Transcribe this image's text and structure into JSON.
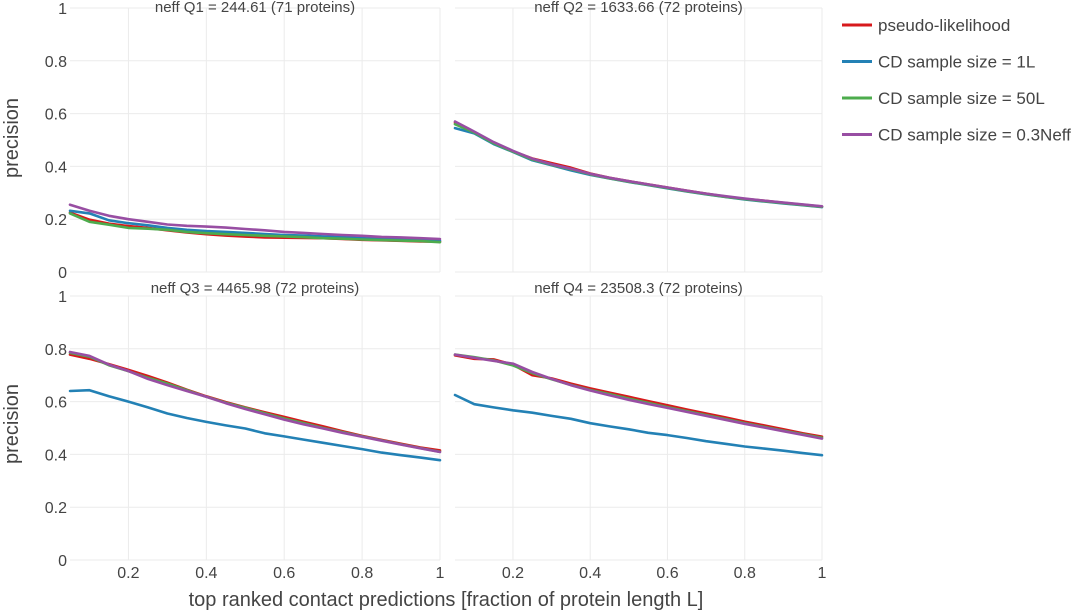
{
  "chart_data": {
    "type": "line",
    "xlabel": "top ranked contact predictions [fraction of protein length L]",
    "ylabel": "precision",
    "xlim": [
      0.05,
      1.0
    ],
    "ylim": [
      0,
      1
    ],
    "x_ticks": [
      "0.2",
      "0.4",
      "0.6",
      "0.8",
      "1"
    ],
    "x_tick_values": [
      0.2,
      0.4,
      0.6,
      0.8,
      1.0
    ],
    "y_ticks": [
      "0",
      "0.2",
      "0.4",
      "0.6",
      "0.8",
      "1"
    ],
    "y_tick_values": [
      0,
      0.2,
      0.4,
      0.6,
      0.8,
      1.0
    ],
    "grid": true,
    "legend_position": "top-right",
    "legend": [
      {
        "name": "pseudo-likelihood",
        "color": "#d7191c"
      },
      {
        "name": "CD sample size = 1L",
        "color": "#2381b5"
      },
      {
        "name": "CD sample size = 50L",
        "color": "#4dac4d"
      },
      {
        "name": "CD sample size = 0.3Neff",
        "color": "#984ea3"
      }
    ],
    "x": [
      0.05,
      0.1,
      0.15,
      0.2,
      0.25,
      0.3,
      0.35,
      0.4,
      0.45,
      0.5,
      0.55,
      0.6,
      0.65,
      0.7,
      0.75,
      0.8,
      0.85,
      0.9,
      0.95,
      1.0
    ],
    "panels": [
      {
        "title": "neff  Q1 = 244.61 (71 proteins)",
        "series": [
          {
            "name": "pseudo-likelihood",
            "color": "#d7191c",
            "values": [
              0.225,
              0.198,
              0.183,
              0.174,
              0.167,
              0.158,
              0.15,
              0.143,
              0.138,
              0.134,
              0.131,
              0.13,
              0.129,
              0.128,
              0.125,
              0.122,
              0.12,
              0.118,
              0.116,
              0.115
            ]
          },
          {
            "name": "CD sample size = 1L",
            "color": "#2381b5",
            "values": [
              0.232,
              0.222,
              0.196,
              0.185,
              0.177,
              0.167,
              0.16,
              0.155,
              0.152,
              0.148,
              0.144,
              0.14,
              0.138,
              0.135,
              0.132,
              0.128,
              0.125,
              0.123,
              0.121,
              0.119
            ]
          },
          {
            "name": "CD sample size = 50L",
            "color": "#4dac4d",
            "values": [
              0.222,
              0.19,
              0.179,
              0.167,
              0.164,
              0.16,
              0.152,
              0.147,
              0.143,
              0.14,
              0.137,
              0.135,
              0.132,
              0.128,
              0.126,
              0.123,
              0.121,
              0.119,
              0.117,
              0.113
            ]
          },
          {
            "name": "CD sample size = 0.3Neff",
            "color": "#984ea3",
            "values": [
              0.255,
              0.232,
              0.213,
              0.2,
              0.19,
              0.18,
              0.175,
              0.172,
              0.168,
              0.163,
              0.158,
              0.152,
              0.148,
              0.144,
              0.14,
              0.137,
              0.133,
              0.131,
              0.128,
              0.125
            ]
          }
        ]
      },
      {
        "title": "neff  Q2 = 1633.66 (72 proteins)",
        "series": [
          {
            "name": "pseudo-likelihood",
            "color": "#d7191c",
            "values": [
              0.565,
              0.53,
              0.49,
              0.457,
              0.43,
              0.412,
              0.395,
              0.373,
              0.357,
              0.344,
              0.332,
              0.32,
              0.308,
              0.297,
              0.286,
              0.277,
              0.27,
              0.262,
              0.255,
              0.248
            ]
          },
          {
            "name": "CD sample size = 1L",
            "color": "#2381b5",
            "values": [
              0.545,
              0.525,
              0.485,
              0.455,
              0.423,
              0.404,
              0.385,
              0.368,
              0.354,
              0.341,
              0.329,
              0.317,
              0.305,
              0.294,
              0.284,
              0.275,
              0.267,
              0.26,
              0.253,
              0.246
            ]
          },
          {
            "name": "CD sample size = 50L",
            "color": "#4dac4d",
            "values": [
              0.56,
              0.528,
              0.488,
              0.456,
              0.426,
              0.406,
              0.389,
              0.37,
              0.355,
              0.342,
              0.33,
              0.318,
              0.306,
              0.295,
              0.285,
              0.276,
              0.268,
              0.261,
              0.254,
              0.247
            ]
          },
          {
            "name": "CD sample size = 0.3Neff",
            "color": "#984ea3",
            "values": [
              0.57,
              0.532,
              0.492,
              0.459,
              0.429,
              0.408,
              0.391,
              0.372,
              0.357,
              0.344,
              0.332,
              0.32,
              0.308,
              0.297,
              0.287,
              0.278,
              0.27,
              0.263,
              0.256,
              0.249
            ]
          }
        ]
      },
      {
        "title": "neff  Q3 = 4465.98 (72 proteins)",
        "series": [
          {
            "name": "pseudo-likelihood",
            "color": "#d7191c",
            "values": [
              0.778,
              0.762,
              0.742,
              0.72,
              0.697,
              0.672,
              0.645,
              0.62,
              0.598,
              0.578,
              0.56,
              0.542,
              0.524,
              0.506,
              0.488,
              0.47,
              0.455,
              0.44,
              0.426,
              0.415
            ]
          },
          {
            "name": "CD sample size = 1L",
            "color": "#2381b5",
            "values": [
              0.64,
              0.643,
              0.62,
              0.6,
              0.578,
              0.555,
              0.538,
              0.523,
              0.51,
              0.498,
              0.48,
              0.468,
              0.456,
              0.444,
              0.432,
              0.42,
              0.407,
              0.397,
              0.388,
              0.378
            ]
          },
          {
            "name": "CD sample size = 50L",
            "color": "#4dac4d",
            "values": [
              0.785,
              0.77,
              0.738,
              0.715,
              0.69,
              0.668,
              0.643,
              0.618,
              0.596,
              0.576,
              0.556,
              0.536,
              0.518,
              0.5,
              0.484,
              0.468,
              0.453,
              0.438,
              0.424,
              0.41
            ]
          },
          {
            "name": "CD sample size = 0.3Neff",
            "color": "#984ea3",
            "values": [
              0.788,
              0.773,
              0.74,
              0.716,
              0.686,
              0.662,
              0.64,
              0.618,
              0.594,
              0.572,
              0.552,
              0.532,
              0.514,
              0.498,
              0.482,
              0.467,
              0.452,
              0.437,
              0.423,
              0.409
            ]
          }
        ]
      },
      {
        "title": "neff  Q4 = 23508.3 (72 proteins)",
        "series": [
          {
            "name": "pseudo-likelihood",
            "color": "#d7191c",
            "values": [
              0.775,
              0.762,
              0.76,
              0.74,
              0.7,
              0.688,
              0.668,
              0.65,
              0.634,
              0.618,
              0.602,
              0.586,
              0.57,
              0.555,
              0.54,
              0.524,
              0.51,
              0.495,
              0.48,
              0.467
            ]
          },
          {
            "name": "CD sample size = 1L",
            "color": "#2381b5",
            "values": [
              0.625,
              0.59,
              0.578,
              0.567,
              0.558,
              0.546,
              0.535,
              0.518,
              0.506,
              0.495,
              0.482,
              0.473,
              0.462,
              0.45,
              0.44,
              0.43,
              0.422,
              0.414,
              0.405,
              0.397
            ]
          },
          {
            "name": "CD sample size = 50L",
            "color": "#4dac4d",
            "values": [
              0.778,
              0.768,
              0.756,
              0.737,
              0.708,
              0.685,
              0.663,
              0.644,
              0.628,
              0.611,
              0.595,
              0.579,
              0.564,
              0.549,
              0.534,
              0.518,
              0.504,
              0.49,
              0.476,
              0.463
            ]
          },
          {
            "name": "CD sample size = 0.3Neff",
            "color": "#984ea3",
            "values": [
              0.778,
              0.766,
              0.754,
              0.744,
              0.712,
              0.686,
              0.662,
              0.642,
              0.624,
              0.607,
              0.591,
              0.576,
              0.561,
              0.546,
              0.531,
              0.516,
              0.502,
              0.488,
              0.474,
              0.46
            ]
          }
        ]
      }
    ]
  }
}
